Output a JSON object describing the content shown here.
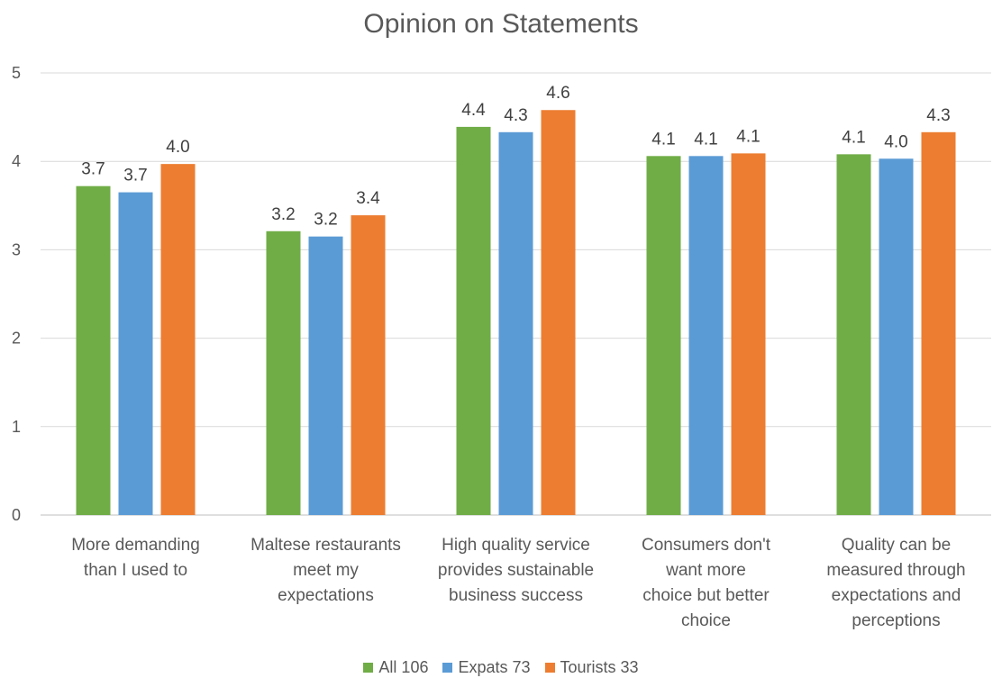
{
  "chart_data": {
    "type": "bar",
    "title": "Opinion on Statements",
    "xlabel": "",
    "ylabel": "",
    "ylim": [
      0,
      5
    ],
    "yticks": [
      0,
      1,
      2,
      3,
      4,
      5
    ],
    "grid": "horizontal",
    "legend_position": "bottom",
    "categories": [
      [
        "More demanding",
        "than I used to"
      ],
      [
        "Maltese restaurants",
        "meet my",
        "expectations"
      ],
      [
        "High quality service",
        "provides sustainable",
        "business success"
      ],
      [
        "Consumers don't",
        "want more",
        "choice but better",
        "choice"
      ],
      [
        "Quality can be",
        "measured through",
        "expectations and",
        "perceptions"
      ]
    ],
    "series": [
      {
        "name": "All 106",
        "color": "#70ad47",
        "values": [
          3.72,
          3.21,
          4.39,
          4.06,
          4.08
        ],
        "labels": [
          "3.7",
          "3.2",
          "4.4",
          "4.1",
          "4.1"
        ]
      },
      {
        "name": "Expats 73",
        "color": "#5b9bd5",
        "values": [
          3.65,
          3.15,
          4.33,
          4.06,
          4.03
        ],
        "labels": [
          "3.7",
          "3.2",
          "4.3",
          "4.1",
          "4.0"
        ]
      },
      {
        "name": "Tourists 33",
        "color": "#ed7d31",
        "values": [
          3.97,
          3.39,
          4.58,
          4.09,
          4.33
        ],
        "labels": [
          "4.0",
          "3.4",
          "4.6",
          "4.1",
          "4.3"
        ]
      }
    ]
  }
}
